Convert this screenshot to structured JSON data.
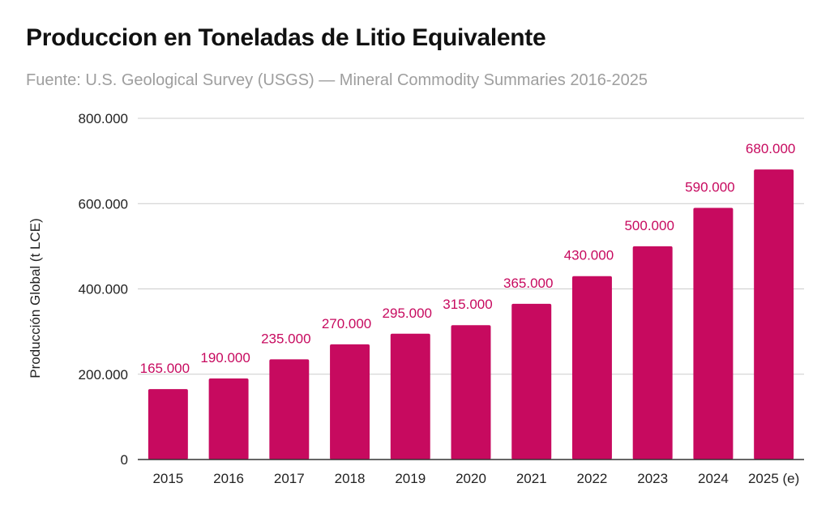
{
  "chart_data": {
    "type": "bar",
    "title": "Produccion en Toneladas de Litio Equivalente",
    "subtitle": "Fuente:  U.S. Geological Survey (USGS) — Mineral Commodity Summaries 2016-2025",
    "xlabel": "",
    "ylabel": "Producción Global (t LCE)",
    "categories": [
      "2015",
      "2016",
      "2017",
      "2018",
      "2019",
      "2020",
      "2021",
      "2022",
      "2023",
      "2024",
      "2025 (e)"
    ],
    "values": [
      165000,
      190000,
      235000,
      270000,
      295000,
      315000,
      365000,
      430000,
      500000,
      590000,
      680000
    ],
    "data_labels": [
      "165.000",
      "190.000",
      "235.000",
      "270.000",
      "295.000",
      "315.000",
      "365.000",
      "430.000",
      "500.000",
      "590.000",
      "680.000"
    ],
    "ylim": [
      0,
      800000
    ],
    "yticks": [
      0,
      200000,
      400000,
      600000,
      800000
    ],
    "ytick_labels": [
      "0",
      "200.000",
      "400.000",
      "600.000",
      "800.000"
    ],
    "grid": true,
    "legend": "none",
    "colors": {
      "bar": "#c70a5f",
      "label": "#c70a5f",
      "grid": "#cccccc",
      "axis": "#333333"
    }
  }
}
